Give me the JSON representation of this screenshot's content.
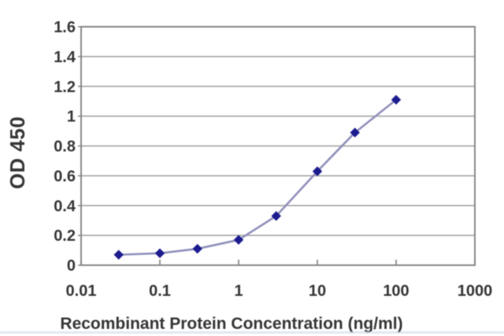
{
  "chart_data": {
    "type": "line",
    "title": "",
    "xlabel": "Recombinant Protein Concentration (ng/ml)",
    "ylabel": "OD 450",
    "x_scale": "log10",
    "xlim": [
      0.01,
      1000
    ],
    "ylim": [
      0,
      1.6
    ],
    "x_tick_values": [
      0.01,
      0.1,
      1,
      10,
      100,
      1000
    ],
    "x_tick_labels": [
      "0.01",
      "0.1",
      "1",
      "10",
      "100",
      "1000"
    ],
    "y_tick_values": [
      0,
      0.2,
      0.4,
      0.6,
      0.8,
      1.0,
      1.2,
      1.4,
      1.6
    ],
    "y_tick_labels": [
      "0",
      "0.2",
      "0.4",
      "0.6",
      "0.8",
      "1",
      "1.2",
      "1.4",
      "1.6"
    ],
    "grid": "horizontal",
    "legend": "none",
    "series": [
      {
        "name": "OD 450",
        "marker": "diamond",
        "x": [
          0.03,
          0.1,
          0.3,
          1,
          3,
          10,
          30,
          100
        ],
        "y": [
          0.07,
          0.08,
          0.11,
          0.17,
          0.33,
          0.63,
          0.89,
          1.11
        ]
      }
    ],
    "colors": {
      "marker": "#1c1c8f",
      "line": "#8f8fbc",
      "grid": "#9e9e9e",
      "border": "#7d7d7d",
      "text": "#353535",
      "bottom_strip": "#c9d3ea"
    }
  }
}
